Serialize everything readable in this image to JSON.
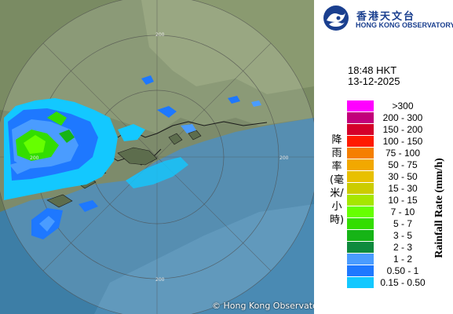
{
  "header": {
    "org_name_zh": "香港天文台",
    "org_name_en": "HONG KONG OBSERVATORY"
  },
  "timestamp": {
    "time": "18:48 HKT",
    "date": "13-12-2025"
  },
  "map": {
    "range_ring_labels": [
      "200",
      "200",
      "200",
      "200"
    ],
    "copyright": "© Hong Kong Observatory"
  },
  "legend": {
    "title_zh": "降雨率(毫米/小時)",
    "title_en": "Rainfall Rate (mm/h)",
    "classes": [
      {
        "label": ">300",
        "color": "#ff00ff"
      },
      {
        "label": "200 - 300",
        "color": "#c2007a"
      },
      {
        "label": "150 - 200",
        "color": "#d4002a"
      },
      {
        "label": "100 - 150",
        "color": "#ff1a00"
      },
      {
        "label": "75 - 100",
        "color": "#f57f00"
      },
      {
        "label": "50 - 75",
        "color": "#f2a800"
      },
      {
        "label": "30 - 50",
        "color": "#e8c000"
      },
      {
        "label": "15 - 30",
        "color": "#cccc00"
      },
      {
        "label": "10 - 15",
        "color": "#a6e600"
      },
      {
        "label": "7 - 10",
        "color": "#66ff00"
      },
      {
        "label": "5 - 7",
        "color": "#33dd00"
      },
      {
        "label": "3 - 5",
        "color": "#16b416"
      },
      {
        "label": "2 - 3",
        "color": "#0e8a3c"
      },
      {
        "label": "1 - 2",
        "color": "#4a9cff"
      },
      {
        "label": "0.50 - 1",
        "color": "#1e78ff"
      },
      {
        "label": "0.15 - 0.50",
        "color": "#13c8ff"
      }
    ]
  }
}
